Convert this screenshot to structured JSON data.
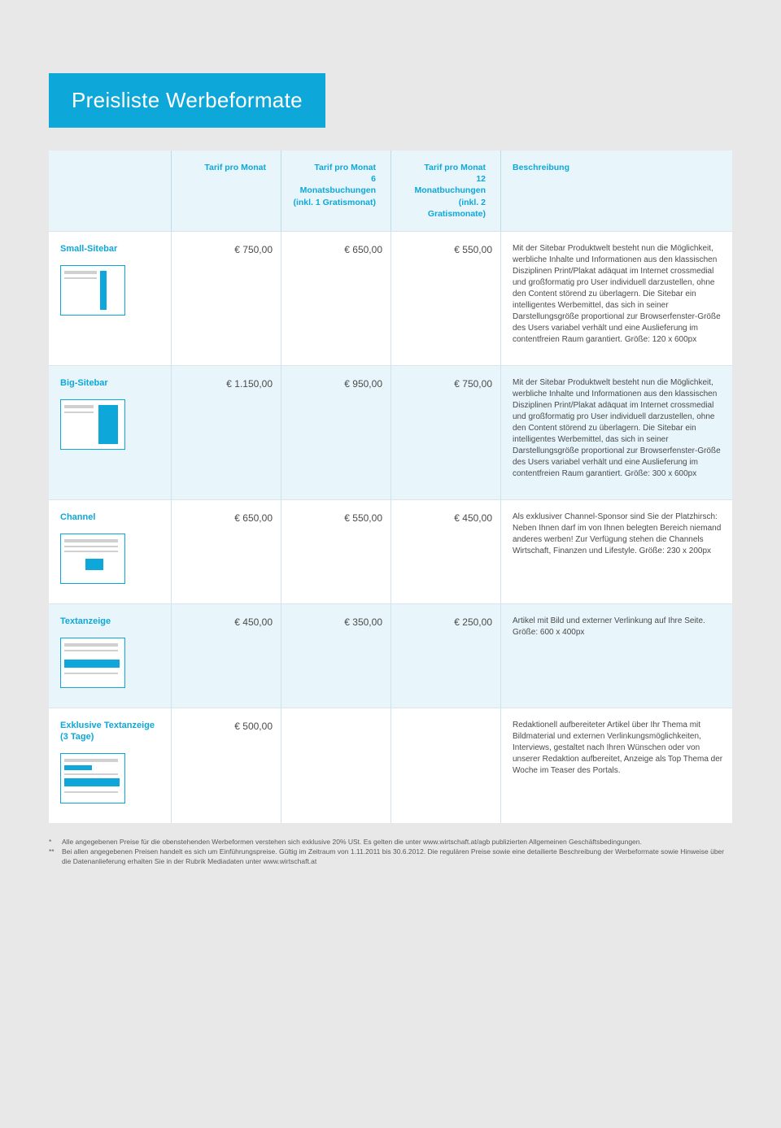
{
  "title": "Preisliste Werbeformate",
  "columns": {
    "c0": "",
    "c1": "Tarif pro Monat",
    "c2_l1": "Tarif pro Monat",
    "c2_l2": "6 Monatsbuchungen",
    "c2_l3": "(inkl. 1 Gratismonat)",
    "c3_l1": "Tarif pro Monat",
    "c3_l2": "12 Monatbuchungen",
    "c3_l3": "(inkl. 2 Gratismonate)",
    "c4": "Beschreibung"
  },
  "rows": [
    {
      "name": "Small-Sitebar",
      "diagram": "small-sitebar",
      "p1": "€ 750,00",
      "p2": "€ 650,00",
      "p3": "€ 550,00",
      "desc": "Mit der Sitebar Produktwelt besteht nun die Möglichkeit, werbliche Inhalte und Informationen aus den klassischen Disziplinen Print/Plakat adäquat im Internet crossmedial und großformatig pro User individuell darzustellen, ohne den Content störend zu überlagern. Die Sitebar ein intelligentes Werbemittel, das sich in seiner Darstellungsgröße proportional zur Browserfenster-Größe des Users variabel verhält und eine Auslieferung im contentfreien Raum garantiert. Größe: 120 x 600px",
      "alt": false
    },
    {
      "name": "Big-Sitebar",
      "diagram": "big-sitebar",
      "p1": "€ 1.150,00",
      "p2": "€ 950,00",
      "p3": "€ 750,00",
      "desc": "Mit der Sitebar Produktwelt besteht nun die Möglichkeit, werbliche Inhalte und Informationen aus den klassischen Disziplinen Print/Plakat adäquat im Internet crossmedial und großformatig pro User individuell darzustellen, ohne den Content störend zu überlagern. Die Sitebar ein intelligentes Werbemittel, das sich in seiner Darstellungsgröße proportional zur Browserfenster-Größe des Users variabel verhält und eine Auslieferung im contentfreien Raum garantiert. Größe: 300 x 600px",
      "alt": true
    },
    {
      "name": "Channel",
      "diagram": "channel",
      "p1": "€ 650,00",
      "p2": "€ 550,00",
      "p3": "€ 450,00",
      "desc": "Als exklusiver Channel-Sponsor sind Sie der Platzhirsch: Neben Ihnen darf im von Ihnen belegten Bereich niemand anderes werben! Zur Verfügung stehen die Channels Wirtschaft, Finanzen und Lifestyle. Größe: 230 x 200px",
      "alt": false
    },
    {
      "name": "Textanzeige",
      "diagram": "textanzeige",
      "p1": "€ 450,00",
      "p2": "€ 350,00",
      "p3": "€ 250,00",
      "desc": "Artikel mit Bild und externer Verlinkung auf Ihre Seite. Größe: 600 x 400px",
      "alt": true
    },
    {
      "name": "Exklusive Textanzeige (3 Tage)",
      "diagram": "exkl-textanzeige",
      "p1": "€ 500,00",
      "p2": "",
      "p3": "",
      "desc": "Redaktionell aufbereiteter Artikel über Ihr Thema mit Bildmaterial und externen Verlinkungsmöglichkeiten, Interviews, gestaltet nach Ihren Wünschen oder von unserer Redaktion aufbereitet, Anzeige als Top Thema der Woche im Teaser des Portals.",
      "alt": false
    }
  ],
  "footnotes": {
    "f1_mark": "*",
    "f1": "Alle angegebenen Preise für die obenstehenden Werbeformen verstehen sich exklusive 20% USt. Es gelten die unter www.wirtschaft.at/agb publizierten Allgemeinen Geschäftsbedingungen.",
    "f2_mark": "**",
    "f2": "Bei allen angegebenen Preisen handelt es sich um Einführungspreise. Gültig im Zeitraum von 1.11.2011 bis 30.6.2012. Die regulären Preise sowie eine detailierte Beschreibung der Werbeformate sowie Hinweise über die Datenanlieferung erhalten Sie in der Rubrik Mediadaten unter www.wirtschaft.at"
  },
  "colors": {
    "accent": "#0da8d9",
    "page_bg": "#e8e8e8",
    "header_bg": "#e8f5fa",
    "border": "#cfe3ec",
    "text": "#4a4a4a"
  }
}
